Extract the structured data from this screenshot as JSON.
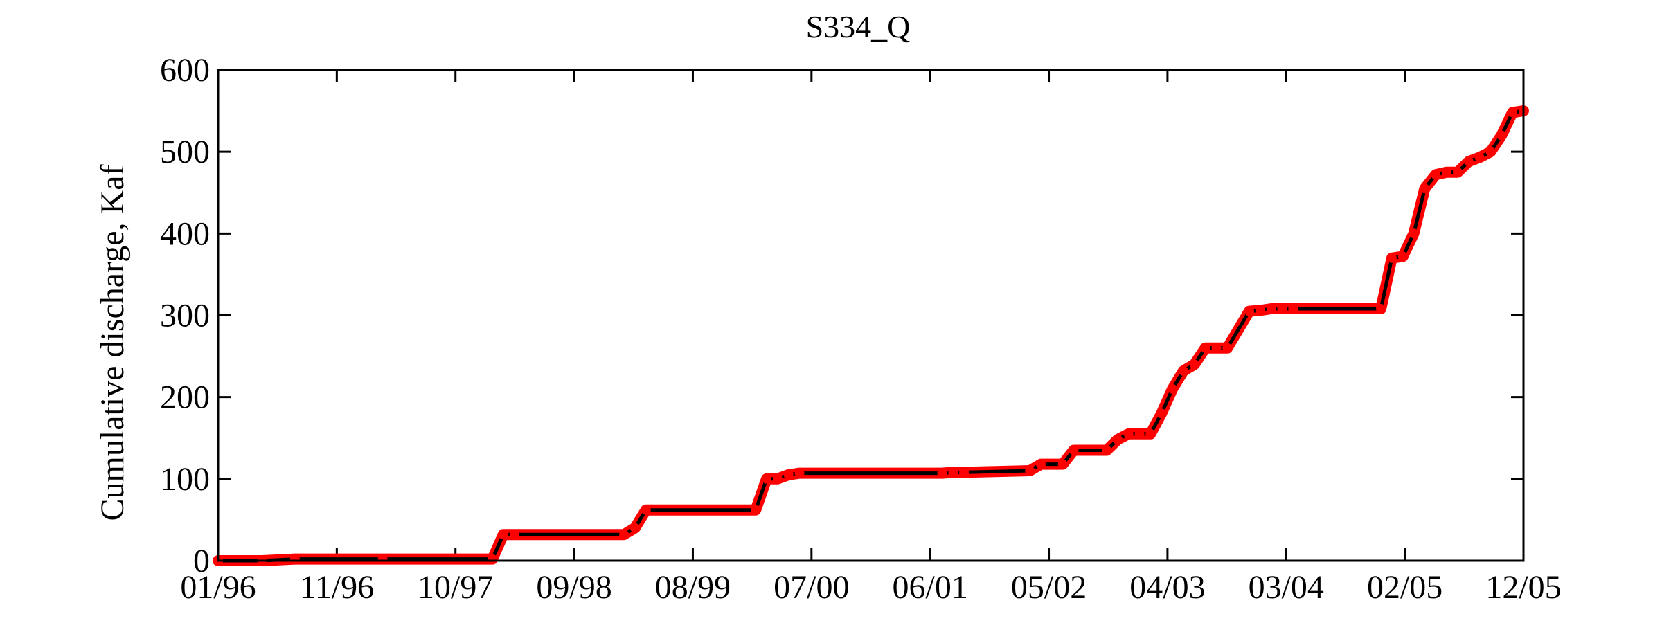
{
  "chart_data": {
    "type": "line",
    "title": "S334_Q",
    "xlabel": "",
    "ylabel": "Cumulative discharge, Kaf",
    "x_tick_labels": [
      "01/96",
      "11/96",
      "10/97",
      "09/98",
      "08/99",
      "07/00",
      "06/01",
      "05/02",
      "04/03",
      "03/04",
      "02/05",
      "12/05"
    ],
    "y_ticks": [
      0,
      100,
      200,
      300,
      400,
      500,
      600
    ],
    "xlim": [
      "1996-01",
      "2005-12"
    ],
    "ylim": [
      0,
      600
    ],
    "grid": false,
    "line_color": "#000000",
    "marker_color": "#ff0000",
    "series": [
      {
        "x": [
          "1996-01",
          "1996-05",
          "1996-08",
          "1997-04",
          "1998-02",
          "1998-03",
          "1998-04",
          "1999-02",
          "1999-03",
          "1999-04",
          "2000-02",
          "2000-03",
          "2000-04",
          "2000-05",
          "2000-06",
          "2001-07",
          "2001-08",
          "2001-09",
          "2002-03",
          "2002-04",
          "2002-06",
          "2002-07",
          "2002-10",
          "2002-11",
          "2002-12",
          "2003-01",
          "2003-02",
          "2003-03",
          "2003-04",
          "2003-05",
          "2003-06",
          "2003-07",
          "2003-08",
          "2003-09",
          "2003-11",
          "2003-12",
          "2004-01",
          "2004-02",
          "2004-03",
          "2004-11",
          "2004-12",
          "2005-01",
          "2005-02",
          "2005-03",
          "2005-04",
          "2005-05",
          "2005-06",
          "2005-07",
          "2005-08",
          "2005-09",
          "2005-10",
          "2005-11",
          "2005-12"
        ],
        "y": [
          0,
          0,
          2,
          2,
          2,
          32,
          32,
          32,
          40,
          62,
          62,
          100,
          100,
          105,
          107,
          107,
          108,
          108,
          110,
          118,
          118,
          135,
          135,
          148,
          155,
          155,
          155,
          180,
          210,
          232,
          240,
          260,
          260,
          260,
          305,
          306,
          308,
          308,
          308,
          308,
          370,
          372,
          400,
          455,
          472,
          475,
          475,
          488,
          493,
          500,
          520,
          548,
          550
        ]
      }
    ]
  }
}
